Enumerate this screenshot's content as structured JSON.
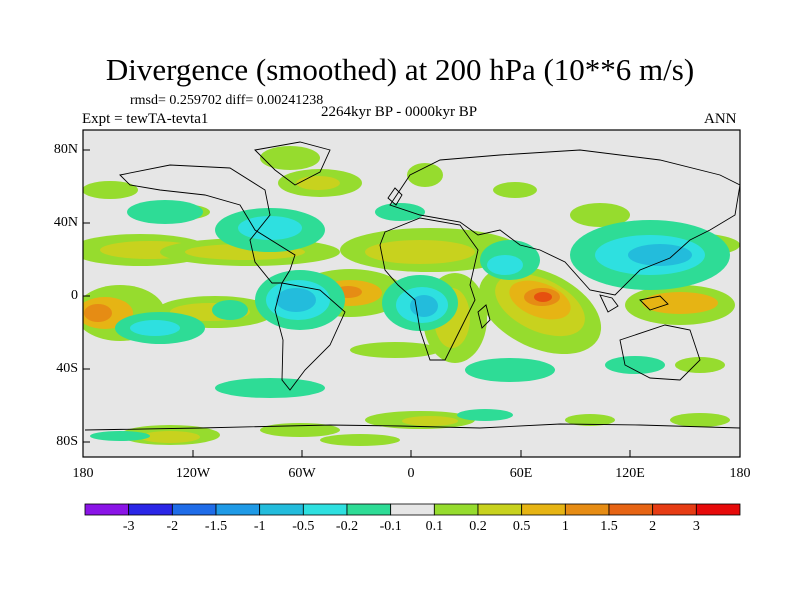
{
  "title": "Divergence (smoothed) at 200 hPa (10**6 m/s)",
  "stats": "rmsd= 0.259702 diff= 0.00241238",
  "experiment": "Expt = tewTA-tevta1",
  "period": "2264kyr BP - 0000kyr BP",
  "season": "ANN",
  "lat_ticks": [
    "80N",
    "40N",
    "0",
    "40S",
    "80S"
  ],
  "lon_ticks": [
    "180",
    "120W",
    "60W",
    "0",
    "60E",
    "120E",
    "180"
  ],
  "colorbar": {
    "levels": [
      "-3",
      "-2",
      "-1.5",
      "-1",
      "-0.5",
      "-0.2",
      "-0.1",
      "0.1",
      "0.2",
      "0.5",
      "1",
      "1.5",
      "2",
      "3"
    ],
    "colors": [
      "#8a14e6",
      "#2b26e6",
      "#1f6ce8",
      "#1f9ae6",
      "#23bcdc",
      "#2ee0e0",
      "#2edc96",
      "#e6e6e6",
      "#96dc2e",
      "#c8d21e",
      "#e6b414",
      "#e68c14",
      "#e66414",
      "#e63c14",
      "#e60a0a"
    ]
  },
  "map_colors": {
    "background": "#e6e6e6",
    "light_green": "#96dc2e",
    "green_yellow": "#c8d21e",
    "yellow_orange": "#e6b414",
    "orange": "#e68c14",
    "red_orange": "#e6500f",
    "aqua_green": "#2edc96",
    "cyan": "#2ee0e0",
    "light_blue": "#23bcdc",
    "blue": "#1f9ae6",
    "coast": "#000000"
  }
}
